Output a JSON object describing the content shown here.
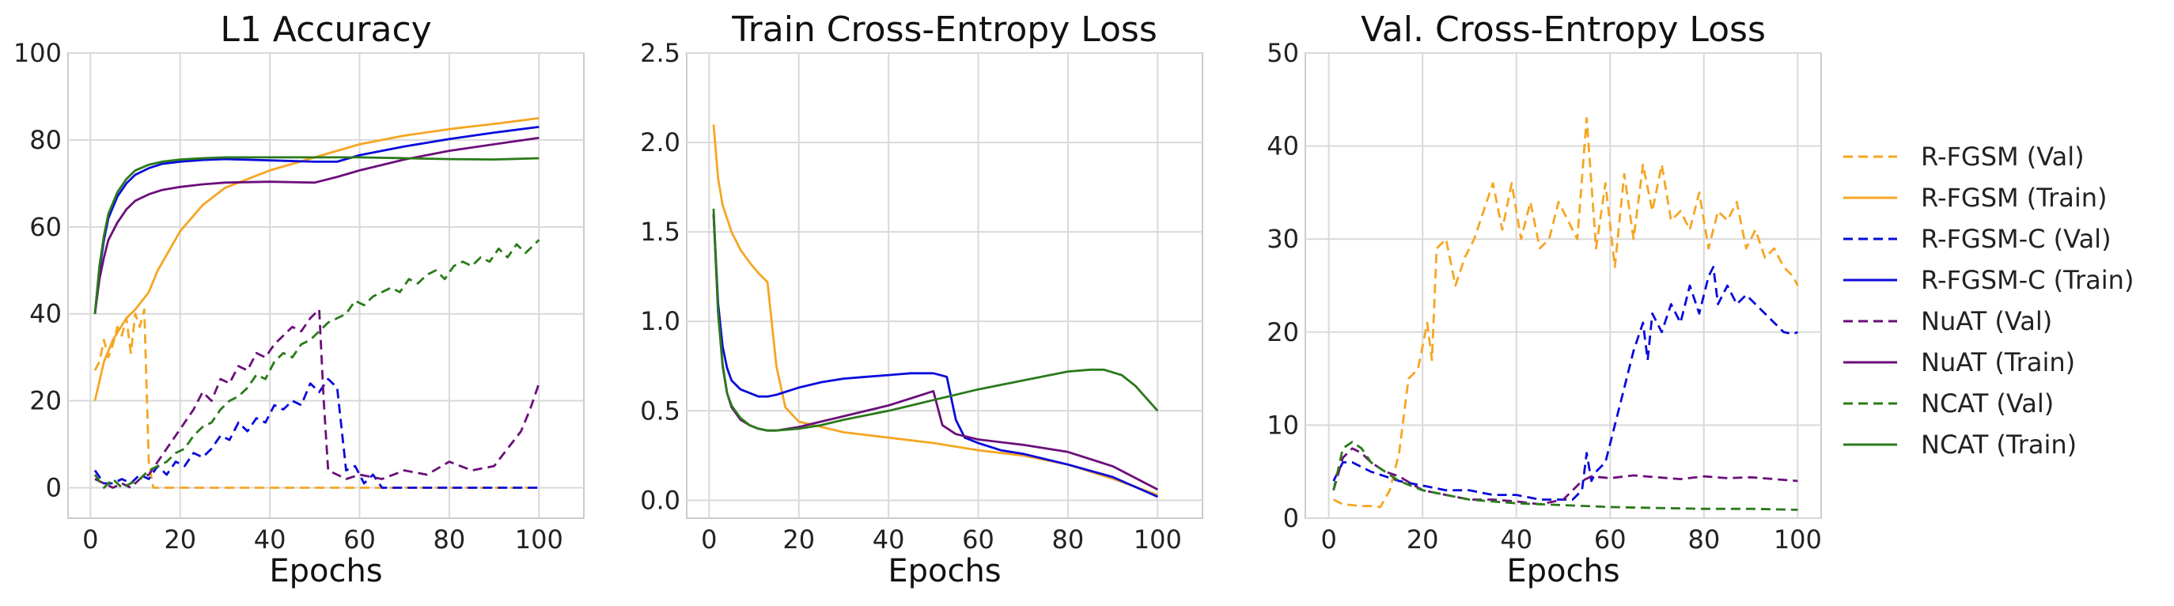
{
  "colors": {
    "rfgsm": "#f5a623",
    "rfgsmc": "#0a0adc",
    "nuat": "#6b0f7a",
    "ncat": "#2a7a1a"
  },
  "legend": [
    {
      "label": "R-FGSM (Val)",
      "color": "#f5a623",
      "dash": true
    },
    {
      "label": "R-FGSM (Train)",
      "color": "#f5a623",
      "dash": false
    },
    {
      "label": "R-FGSM-C (Val)",
      "color": "#0a0adc",
      "dash": true
    },
    {
      "label": "R-FGSM-C (Train)",
      "color": "#0a0adc",
      "dash": false
    },
    {
      "label": "NuAT (Val)",
      "color": "#6b0f7a",
      "dash": true
    },
    {
      "label": "NuAT (Train)",
      "color": "#6b0f7a",
      "dash": false
    },
    {
      "label": "NCAT (Val)",
      "color": "#2a7a1a",
      "dash": true
    },
    {
      "label": "NCAT (Train)",
      "color": "#2a7a1a",
      "dash": false
    }
  ],
  "chart_data": [
    {
      "type": "line",
      "title": "L1 Accuracy",
      "xlabel": "Epochs",
      "ylabel": "",
      "xlim": [
        -5,
        110
      ],
      "ylim": [
        -7,
        100
      ],
      "xticks": [
        0,
        20,
        40,
        60,
        80,
        100
      ],
      "yticks": [
        0,
        20,
        40,
        60,
        80,
        100
      ],
      "grid": true,
      "series": [
        {
          "name": "R-FGSM (Val)",
          "color": "#f5a623",
          "dash": true,
          "x": [
            1,
            2,
            3,
            4,
            5,
            6,
            7,
            8,
            9,
            10,
            11,
            12,
            13,
            14,
            20,
            40,
            60,
            80,
            100
          ],
          "y": [
            27,
            29,
            34,
            30,
            33,
            37,
            35,
            39,
            31,
            40,
            37,
            41,
            6,
            0,
            0,
            0,
            0,
            0,
            0
          ]
        },
        {
          "name": "R-FGSM (Train)",
          "color": "#f5a623",
          "dash": false,
          "x": [
            1,
            3,
            5,
            8,
            10,
            13,
            15,
            20,
            25,
            30,
            40,
            50,
            60,
            70,
            80,
            90,
            100
          ],
          "y": [
            20,
            29,
            34,
            39,
            41,
            45,
            50,
            59,
            65,
            69,
            73,
            76,
            79,
            81,
            82.5,
            83.7,
            85
          ]
        },
        {
          "name": "R-FGSM-C (Val)",
          "color": "#0a0adc",
          "dash": true,
          "x": [
            1,
            3,
            5,
            7,
            9,
            11,
            13,
            15,
            17,
            19,
            21,
            23,
            25,
            27,
            29,
            31,
            33,
            35,
            37,
            39,
            41,
            43,
            45,
            47,
            49,
            51,
            53,
            55,
            57,
            59,
            61,
            63,
            65,
            70,
            80,
            90,
            100
          ],
          "y": [
            4,
            1,
            1,
            2,
            1,
            3,
            2,
            5,
            3,
            6,
            5,
            8,
            7,
            9,
            12,
            11,
            15,
            13,
            16,
            15,
            19,
            18,
            20,
            19,
            24,
            22,
            25,
            23,
            4,
            5,
            1,
            3,
            0,
            0,
            0,
            0,
            0
          ]
        },
        {
          "name": "R-FGSM-C (Train)",
          "color": "#0a0adc",
          "dash": false,
          "x": [
            1,
            2,
            3,
            4,
            6,
            8,
            10,
            13,
            16,
            20,
            25,
            30,
            40,
            50,
            55,
            60,
            70,
            80,
            90,
            100
          ],
          "y": [
            40,
            50,
            57,
            62,
            67,
            70,
            72,
            73.5,
            74.5,
            75,
            75.4,
            75.6,
            75.3,
            75,
            75,
            76.5,
            78.5,
            80.2,
            81.7,
            83
          ]
        },
        {
          "name": "NuAT (Val)",
          "color": "#6b0f7a",
          "dash": true,
          "x": [
            1,
            3,
            5,
            7,
            9,
            11,
            13,
            15,
            17,
            19,
            21,
            23,
            25,
            27,
            29,
            31,
            33,
            35,
            37,
            39,
            41,
            43,
            45,
            47,
            49,
            51,
            52,
            53,
            55,
            57,
            60,
            65,
            70,
            75,
            80,
            85,
            90,
            93,
            96,
            98,
            100
          ],
          "y": [
            2,
            1,
            0,
            1,
            0,
            2,
            3,
            6,
            9,
            12,
            15,
            18,
            22,
            20,
            25,
            24,
            28,
            27,
            31,
            30,
            33,
            35,
            37,
            36,
            39,
            41,
            20,
            4,
            3,
            2,
            3,
            2,
            4,
            3,
            6,
            4,
            5,
            9,
            13,
            18,
            24
          ]
        },
        {
          "name": "NuAT (Train)",
          "color": "#6b0f7a",
          "dash": false,
          "x": [
            1,
            2,
            3,
            4,
            6,
            8,
            10,
            13,
            16,
            20,
            25,
            30,
            40,
            50,
            55,
            60,
            70,
            80,
            90,
            100
          ],
          "y": [
            40,
            48,
            53,
            57,
            61,
            64,
            66,
            67.5,
            68.5,
            69.2,
            69.8,
            70.2,
            70.4,
            70.2,
            71.5,
            73,
            75.5,
            77.5,
            79,
            80.5
          ]
        },
        {
          "name": "NCAT (Val)",
          "color": "#2a7a1a",
          "dash": true,
          "x": [
            1,
            3,
            5,
            7,
            9,
            11,
            13,
            15,
            17,
            19,
            21,
            23,
            25,
            27,
            29,
            31,
            33,
            35,
            37,
            39,
            41,
            43,
            45,
            47,
            49,
            51,
            53,
            55,
            57,
            59,
            61,
            63,
            65,
            67,
            69,
            71,
            73,
            75,
            77,
            79,
            81,
            83,
            85,
            87,
            89,
            91,
            93,
            95,
            97,
            99,
            100
          ],
          "y": [
            3,
            0,
            2,
            0,
            1,
            2,
            4,
            5,
            6,
            8,
            9,
            12,
            14,
            15,
            18,
            20,
            21,
            23,
            26,
            25,
            29,
            31,
            30,
            33,
            34,
            36,
            38,
            39,
            40,
            43,
            42,
            44,
            45,
            46,
            45,
            48,
            47,
            49,
            50,
            48,
            51,
            52,
            51,
            53,
            52,
            55,
            53,
            56,
            54,
            56,
            57
          ]
        },
        {
          "name": "NCAT (Train)",
          "color": "#2a7a1a",
          "dash": false,
          "x": [
            1,
            2,
            3,
            4,
            6,
            8,
            10,
            13,
            16,
            20,
            25,
            30,
            40,
            50,
            60,
            70,
            80,
            90,
            100
          ],
          "y": [
            40,
            51,
            58,
            63,
            68,
            71,
            73,
            74.3,
            75,
            75.5,
            75.8,
            76,
            76,
            76,
            76,
            75.8,
            75.6,
            75.5,
            75.8
          ]
        }
      ]
    },
    {
      "type": "line",
      "title": "Train Cross-Entropy Loss",
      "xlabel": "Epochs",
      "ylabel": "",
      "xlim": [
        -5,
        110
      ],
      "ylim": [
        -0.1,
        2.5
      ],
      "xticks": [
        0,
        20,
        40,
        60,
        80,
        100
      ],
      "yticks": [
        0.0,
        0.5,
        1.0,
        1.5,
        2.0,
        2.5
      ],
      "ytick_labels": [
        "0.0",
        "0.5",
        "1.0",
        "1.5",
        "2.0",
        "2.5"
      ],
      "grid": true,
      "series": [
        {
          "name": "R-FGSM (Train)",
          "color": "#f5a623",
          "dash": false,
          "x": [
            1,
            2,
            3,
            5,
            7,
            9,
            11,
            13,
            15,
            17,
            20,
            25,
            30,
            40,
            50,
            60,
            70,
            80,
            90,
            100
          ],
          "y": [
            2.1,
            1.8,
            1.65,
            1.5,
            1.4,
            1.33,
            1.27,
            1.22,
            0.75,
            0.52,
            0.44,
            0.41,
            0.38,
            0.35,
            0.32,
            0.28,
            0.25,
            0.2,
            0.12,
            0.03
          ]
        },
        {
          "name": "R-FGSM-C (Train)",
          "color": "#0a0adc",
          "dash": false,
          "x": [
            1,
            2,
            3,
            4,
            5,
            7,
            9,
            11,
            13,
            15,
            20,
            25,
            30,
            35,
            40,
            45,
            50,
            53,
            55,
            57,
            60,
            65,
            70,
            80,
            90,
            100
          ],
          "y": [
            1.6,
            1.1,
            0.86,
            0.74,
            0.67,
            0.62,
            0.6,
            0.58,
            0.58,
            0.59,
            0.63,
            0.66,
            0.68,
            0.69,
            0.7,
            0.71,
            0.71,
            0.69,
            0.45,
            0.35,
            0.32,
            0.28,
            0.26,
            0.2,
            0.13,
            0.02
          ]
        },
        {
          "name": "NuAT (Train)",
          "color": "#6b0f7a",
          "dash": false,
          "x": [
            1,
            2,
            3,
            4,
            5,
            7,
            9,
            11,
            13,
            15,
            20,
            25,
            30,
            40,
            45,
            50,
            52,
            55,
            60,
            70,
            80,
            90,
            100
          ],
          "y": [
            1.6,
            1.05,
            0.75,
            0.6,
            0.52,
            0.45,
            0.42,
            0.4,
            0.39,
            0.39,
            0.41,
            0.44,
            0.47,
            0.53,
            0.57,
            0.61,
            0.42,
            0.37,
            0.34,
            0.31,
            0.27,
            0.19,
            0.06
          ]
        },
        {
          "name": "NCAT (Train)",
          "color": "#2a7a1a",
          "dash": false,
          "x": [
            1,
            2,
            3,
            4,
            5,
            7,
            9,
            11,
            13,
            15,
            20,
            25,
            30,
            40,
            50,
            60,
            70,
            80,
            85,
            88,
            92,
            95,
            100
          ],
          "y": [
            1.63,
            1.05,
            0.76,
            0.6,
            0.53,
            0.46,
            0.42,
            0.4,
            0.39,
            0.39,
            0.4,
            0.42,
            0.45,
            0.5,
            0.56,
            0.62,
            0.67,
            0.72,
            0.73,
            0.73,
            0.7,
            0.64,
            0.5
          ]
        }
      ]
    },
    {
      "type": "line",
      "title": "Val. Cross-Entropy Loss",
      "xlabel": "Epochs",
      "ylabel": "",
      "xlim": [
        -5,
        105
      ],
      "ylim": [
        0,
        50
      ],
      "xticks": [
        0,
        20,
        40,
        60,
        80,
        100
      ],
      "yticks": [
        0,
        10,
        20,
        30,
        40,
        50
      ],
      "grid": true,
      "series": [
        {
          "name": "R-FGSM (Val)",
          "color": "#f5a623",
          "dash": true,
          "x": [
            1,
            3,
            5,
            7,
            9,
            11,
            13,
            15,
            17,
            19,
            21,
            22,
            23,
            25,
            27,
            29,
            31,
            33,
            35,
            37,
            39,
            41,
            43,
            45,
            47,
            49,
            51,
            53,
            55,
            57,
            59,
            61,
            63,
            65,
            67,
            69,
            71,
            73,
            75,
            77,
            79,
            81,
            83,
            85,
            87,
            89,
            91,
            93,
            95,
            97,
            99,
            100
          ],
          "y": [
            2,
            1.5,
            1.4,
            1.3,
            1.3,
            1.2,
            3,
            7,
            15,
            16,
            21,
            17,
            29,
            30,
            25,
            28,
            30,
            33,
            36,
            31,
            36,
            30,
            34,
            29,
            30,
            34,
            32,
            30,
            43,
            29,
            36,
            27,
            37,
            30,
            38,
            33,
            38,
            32,
            33,
            31,
            35,
            29,
            33,
            32,
            34,
            29,
            31,
            28,
            29,
            27,
            26,
            25
          ]
        },
        {
          "name": "R-FGSM-C (Val)",
          "color": "#0a0adc",
          "dash": true,
          "x": [
            1,
            3,
            5,
            7,
            9,
            12,
            15,
            20,
            25,
            30,
            35,
            40,
            45,
            50,
            52,
            54,
            55,
            56,
            57,
            59,
            61,
            63,
            65,
            67,
            68,
            69,
            71,
            73,
            75,
            77,
            79,
            81,
            82,
            83,
            85,
            87,
            89,
            91,
            93,
            95,
            97,
            99,
            100
          ],
          "y": [
            4,
            6,
            6,
            5.5,
            5,
            4.5,
            4,
            3.5,
            3,
            3,
            2.5,
            2.5,
            2,
            2,
            2,
            3,
            7,
            4,
            5,
            6,
            10,
            14,
            18,
            21,
            17,
            22,
            20,
            23,
            21,
            25,
            22,
            26,
            27,
            23,
            25,
            23,
            24,
            23,
            22,
            21,
            20,
            19.8,
            20
          ]
        },
        {
          "name": "NuAT (Val)",
          "color": "#6b0f7a",
          "dash": true,
          "x": [
            1,
            3,
            5,
            7,
            9,
            12,
            15,
            20,
            25,
            30,
            35,
            40,
            45,
            50,
            52,
            54,
            56,
            60,
            65,
            70,
            75,
            80,
            85,
            90,
            95,
            100
          ],
          "y": [
            3,
            6.5,
            7.5,
            7,
            6,
            5,
            4.5,
            3,
            2.5,
            2,
            2,
            1.8,
            1.5,
            2,
            3,
            4,
            4.5,
            4.3,
            4.6,
            4.4,
            4.2,
            4.5,
            4.3,
            4.4,
            4.2,
            4
          ]
        },
        {
          "name": "NCAT (Val)",
          "color": "#2a7a1a",
          "dash": true,
          "x": [
            1,
            3,
            5,
            7,
            9,
            12,
            15,
            20,
            25,
            30,
            40,
            50,
            60,
            70,
            80,
            90,
            100
          ],
          "y": [
            3,
            7.5,
            8.2,
            7.5,
            6,
            5,
            4,
            3,
            2.5,
            2,
            1.6,
            1.4,
            1.2,
            1.1,
            1,
            1,
            0.9
          ]
        }
      ]
    }
  ]
}
